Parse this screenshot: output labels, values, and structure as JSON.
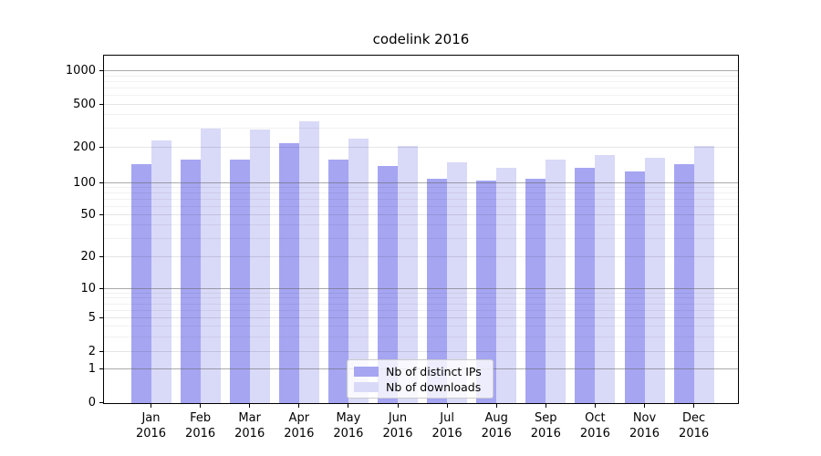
{
  "title": "codelink 2016",
  "chart_data": {
    "type": "bar",
    "title": "codelink 2016",
    "categories": [
      "Jan 2016",
      "Feb 2016",
      "Mar 2016",
      "Apr 2016",
      "May 2016",
      "Jun 2016",
      "Jul 2016",
      "Aug 2016",
      "Sep 2016",
      "Oct 2016",
      "Nov 2016",
      "Dec 2016"
    ],
    "series": [
      {
        "name": "Nb of distinct IPs",
        "color": "#a5a5f2",
        "values": [
          145,
          160,
          160,
          220,
          160,
          140,
          110,
          105,
          110,
          135,
          125,
          145
        ]
      },
      {
        "name": "Nb of downloads",
        "color": "#d9d9f8",
        "values": [
          235,
          300,
          295,
          350,
          245,
          210,
          150,
          135,
          160,
          175,
          165,
          210
        ]
      }
    ],
    "xlabel": "",
    "ylabel": "",
    "yscale": "log-like (1-2-5 steps with 0 baseline)",
    "ytick_values": [
      0,
      1,
      2,
      5,
      10,
      20,
      50,
      100,
      200,
      500,
      1000
    ],
    "ytick_labels": [
      "0",
      "1",
      "2",
      "5",
      "10",
      "20",
      "50",
      "100",
      "200",
      "500",
      "1000"
    ],
    "ylim": [
      0,
      1400
    ],
    "grid": true,
    "legend_position": "lower center"
  },
  "colors": {
    "bar_distinct_ips": "#a5a5f2",
    "bar_downloads": "#d9d9f8",
    "axis": "#000000",
    "grid_major": "#6e6e6e",
    "grid_minor": "#e8e8e8",
    "legend_border": "#cccccc"
  }
}
